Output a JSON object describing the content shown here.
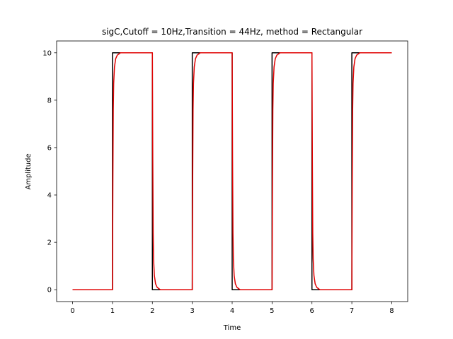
{
  "chart_data": {
    "type": "line",
    "title": "sigC,Cutoff = 10Hz,Transition = 44Hz, method = Rectangular",
    "xlabel": "Time",
    "ylabel": "Amplitude",
    "xlim": [
      -0.4,
      8.4
    ],
    "ylim": [
      -0.5,
      10.5
    ],
    "xticks": [
      0,
      1,
      2,
      3,
      4,
      5,
      6,
      7,
      8
    ],
    "yticks": [
      0,
      2,
      4,
      6,
      8,
      10
    ],
    "grid": false,
    "legend": "none",
    "series": [
      {
        "color": "#000000",
        "x": [
          0,
          1,
          1,
          2,
          2,
          3,
          3,
          4,
          4,
          5,
          5,
          6,
          6,
          7,
          7,
          8
        ],
        "y": [
          0,
          0,
          10,
          10,
          0,
          0,
          10,
          10,
          0,
          0,
          10,
          10,
          0,
          0,
          10,
          10
        ]
      },
      {
        "color": "#e00000",
        "x": [
          0,
          1.0,
          1.01,
          1.02,
          1.03,
          1.05,
          1.08,
          1.12,
          1.2,
          2.0,
          2.01,
          2.02,
          2.03,
          2.05,
          2.08,
          2.12,
          2.2,
          3.0,
          3.01,
          3.02,
          3.03,
          3.05,
          3.08,
          3.12,
          3.2,
          4.0,
          4.01,
          4.02,
          4.03,
          4.05,
          4.08,
          4.12,
          4.2,
          5.0,
          5.01,
          5.02,
          5.03,
          5.05,
          5.08,
          5.12,
          5.2,
          6.0,
          6.01,
          6.02,
          6.03,
          6.05,
          6.08,
          6.12,
          6.2,
          7.0,
          7.01,
          7.02,
          7.03,
          7.05,
          7.08,
          7.12,
          7.2,
          8.0
        ],
        "y": [
          0,
          0,
          4.5,
          7.6,
          8.7,
          9.4,
          9.75,
          9.9,
          10,
          10,
          5.5,
          2.4,
          1.3,
          0.6,
          0.25,
          0.1,
          0,
          0,
          4.5,
          7.6,
          8.7,
          9.4,
          9.75,
          9.9,
          10,
          10,
          5.5,
          2.4,
          1.3,
          0.6,
          0.25,
          0.1,
          0,
          0,
          4.5,
          7.6,
          8.7,
          9.4,
          9.75,
          9.9,
          10,
          10,
          5.5,
          2.4,
          1.3,
          0.6,
          0.25,
          0.1,
          0,
          0,
          4.5,
          7.6,
          8.7,
          9.4,
          9.75,
          9.9,
          10,
          10
        ]
      }
    ]
  }
}
